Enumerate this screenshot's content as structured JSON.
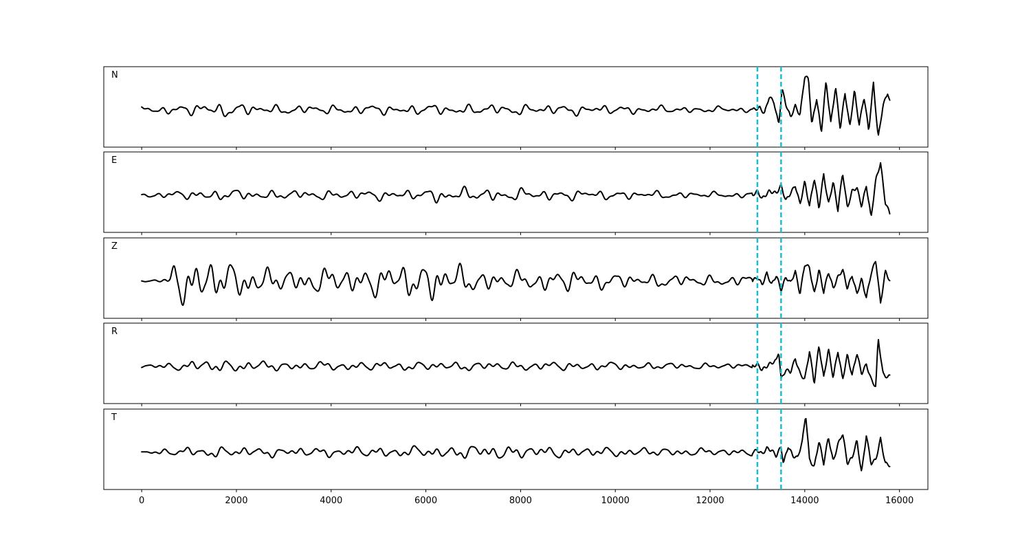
{
  "chart_data": {
    "type": "line",
    "xlim": [
      -800,
      16600
    ],
    "x_ticks": [
      0,
      2000,
      4000,
      6000,
      8000,
      10000,
      12000,
      14000,
      16000
    ],
    "x_tick_labels": [
      "0",
      "2000",
      "4000",
      "6000",
      "8000",
      "10000",
      "12000",
      "14000",
      "16000"
    ],
    "sample_count": 15800,
    "vertical_markers": [
      13000,
      13500
    ],
    "marker_color": "#17becf",
    "trace_color": "#000000",
    "grid": false,
    "panels": [
      {
        "label": "N",
        "ylim": [
          -1,
          1
        ],
        "noise_envelope": [
          [
            0,
            0.08
          ],
          [
            1000,
            0.15
          ],
          [
            1500,
            0.2
          ],
          [
            3000,
            0.12
          ],
          [
            6000,
            0.14
          ],
          [
            9000,
            0.14
          ],
          [
            12000,
            0.08
          ],
          [
            12900,
            0.08
          ]
        ],
        "signal_points": [
          [
            12900,
            0
          ],
          [
            13050,
            0.05
          ],
          [
            13150,
            -0.1
          ],
          [
            13250,
            0.35
          ],
          [
            13350,
            0.2
          ],
          [
            13450,
            -0.4
          ],
          [
            13520,
            0.55
          ],
          [
            13600,
            0.15
          ],
          [
            13700,
            -0.2
          ],
          [
            13800,
            0.1
          ],
          [
            13900,
            -0.15
          ],
          [
            14000,
            0.9
          ],
          [
            14080,
            0.8
          ],
          [
            14150,
            -0.4
          ],
          [
            14250,
            0.3
          ],
          [
            14350,
            -0.6
          ],
          [
            14450,
            0.75
          ],
          [
            14550,
            -0.35
          ],
          [
            14650,
            0.6
          ],
          [
            14750,
            -0.5
          ],
          [
            14850,
            0.45
          ],
          [
            14950,
            -0.45
          ],
          [
            15050,
            0.5
          ],
          [
            15150,
            -0.4
          ],
          [
            15250,
            0.35
          ],
          [
            15350,
            -0.55
          ],
          [
            15450,
            0.7
          ],
          [
            15550,
            -0.75
          ],
          [
            15650,
            0.1
          ],
          [
            15750,
            0.45
          ],
          [
            15800,
            0.2
          ]
        ]
      },
      {
        "label": "E",
        "ylim": [
          -1,
          1
        ],
        "noise_envelope": [
          [
            0,
            0.06
          ],
          [
            1000,
            0.12
          ],
          [
            1500,
            0.15
          ],
          [
            3000,
            0.12
          ],
          [
            6000,
            0.14
          ],
          [
            6200,
            0.2
          ],
          [
            9000,
            0.14
          ],
          [
            12000,
            0.08
          ],
          [
            12900,
            0.08
          ]
        ],
        "signal_points": [
          [
            12900,
            0
          ],
          [
            13000,
            0.1
          ],
          [
            13100,
            -0.1
          ],
          [
            13250,
            0.1
          ],
          [
            13400,
            0.05
          ],
          [
            13500,
            0.25
          ],
          [
            13600,
            -0.15
          ],
          [
            13700,
            0.05
          ],
          [
            13800,
            0.25
          ],
          [
            13900,
            -0.25
          ],
          [
            14000,
            0.35
          ],
          [
            14100,
            -0.3
          ],
          [
            14200,
            0.45
          ],
          [
            14300,
            -0.35
          ],
          [
            14400,
            0.55
          ],
          [
            14500,
            -0.25
          ],
          [
            14600,
            0.35
          ],
          [
            14700,
            -0.4
          ],
          [
            14800,
            0.6
          ],
          [
            14900,
            -0.35
          ],
          [
            15000,
            0.1
          ],
          [
            15100,
            0.2
          ],
          [
            15200,
            -0.3
          ],
          [
            15300,
            0.25
          ],
          [
            15400,
            -0.6
          ],
          [
            15500,
            0.4
          ],
          [
            15600,
            0.85
          ],
          [
            15700,
            -0.2
          ],
          [
            15800,
            -0.5
          ]
        ]
      },
      {
        "label": "Z",
        "ylim": [
          -1,
          1
        ],
        "noise_envelope": [
          [
            0,
            0.02
          ],
          [
            400,
            0.05
          ],
          [
            600,
            0.15
          ],
          [
            700,
            0.6
          ],
          [
            1000,
            0.6
          ],
          [
            1300,
            0.65
          ],
          [
            1600,
            0.55
          ],
          [
            2000,
            0.45
          ],
          [
            3000,
            0.3
          ],
          [
            5000,
            0.4
          ],
          [
            6300,
            0.55
          ],
          [
            7000,
            0.3
          ],
          [
            8000,
            0.25
          ],
          [
            9000,
            0.3
          ],
          [
            10000,
            0.2
          ],
          [
            12000,
            0.15
          ],
          [
            12900,
            0.15
          ]
        ],
        "signal_points": [
          [
            12900,
            0
          ],
          [
            13000,
            0.1
          ],
          [
            13100,
            -0.1
          ],
          [
            13200,
            0.2
          ],
          [
            13300,
            -0.1
          ],
          [
            13400,
            0.15
          ],
          [
            13500,
            -0.25
          ],
          [
            13600,
            0.1
          ],
          [
            13700,
            -0.05
          ],
          [
            13800,
            0.25
          ],
          [
            13900,
            -0.35
          ],
          [
            14000,
            0.45
          ],
          [
            14100,
            0.35
          ],
          [
            14200,
            -0.35
          ],
          [
            14300,
            0.3
          ],
          [
            14400,
            -0.3
          ],
          [
            14500,
            0.25
          ],
          [
            14600,
            -0.2
          ],
          [
            14700,
            0.1
          ],
          [
            14800,
            0.3
          ],
          [
            14900,
            -0.2
          ],
          [
            15000,
            0.15
          ],
          [
            15100,
            -0.35
          ],
          [
            15200,
            0.05
          ],
          [
            15300,
            -0.45
          ],
          [
            15400,
            0.2
          ],
          [
            15500,
            0.55
          ],
          [
            15600,
            -0.6
          ],
          [
            15700,
            0.25
          ],
          [
            15800,
            0
          ]
        ]
      },
      {
        "label": "R",
        "ylim": [
          -1,
          1
        ],
        "noise_envelope": [
          [
            0,
            0.05
          ],
          [
            900,
            0.12
          ],
          [
            1300,
            0.18
          ],
          [
            3000,
            0.12
          ],
          [
            6000,
            0.12
          ],
          [
            9000,
            0.12
          ],
          [
            12000,
            0.08
          ],
          [
            12900,
            0.08
          ]
        ],
        "signal_points": [
          [
            12900,
            0
          ],
          [
            13000,
            0.05
          ],
          [
            13100,
            -0.1
          ],
          [
            13250,
            0.05
          ],
          [
            13400,
            0.15
          ],
          [
            13450,
            0.4
          ],
          [
            13500,
            -0.35
          ],
          [
            13600,
            -0.1
          ],
          [
            13700,
            -0.15
          ],
          [
            13800,
            0.2
          ],
          [
            13900,
            -0.2
          ],
          [
            14000,
            -0.35
          ],
          [
            14100,
            0.4
          ],
          [
            14200,
            -0.45
          ],
          [
            14300,
            0.55
          ],
          [
            14400,
            -0.3
          ],
          [
            14500,
            0.45
          ],
          [
            14600,
            -0.3
          ],
          [
            14700,
            0.4
          ],
          [
            14800,
            -0.35
          ],
          [
            14900,
            0.3
          ],
          [
            15000,
            -0.25
          ],
          [
            15100,
            0.35
          ],
          [
            15200,
            -0.2
          ],
          [
            15300,
            0.05
          ],
          [
            15400,
            -0.35
          ],
          [
            15500,
            -0.55
          ],
          [
            15550,
            0.75
          ],
          [
            15650,
            -0.2
          ],
          [
            15750,
            -0.3
          ],
          [
            15800,
            -0.25
          ]
        ]
      },
      {
        "label": "T",
        "ylim": [
          -1,
          1
        ],
        "noise_envelope": [
          [
            0,
            0.05
          ],
          [
            900,
            0.12
          ],
          [
            1500,
            0.15
          ],
          [
            3000,
            0.12
          ],
          [
            6000,
            0.15
          ],
          [
            7300,
            0.2
          ],
          [
            9000,
            0.14
          ],
          [
            12000,
            0.1
          ],
          [
            12900,
            0.1
          ]
        ],
        "signal_points": [
          [
            12900,
            0
          ],
          [
            13000,
            0.05
          ],
          [
            13100,
            -0.05
          ],
          [
            13200,
            0.1
          ],
          [
            13300,
            0.05
          ],
          [
            13400,
            -0.1
          ],
          [
            13500,
            0.15
          ],
          [
            13550,
            -0.3
          ],
          [
            13650,
            0.15
          ],
          [
            13750,
            -0.1
          ],
          [
            13850,
            -0.15
          ],
          [
            13950,
            0.3
          ],
          [
            14020,
            1.0
          ],
          [
            14100,
            -0.2
          ],
          [
            14200,
            -0.4
          ],
          [
            14300,
            0.3
          ],
          [
            14400,
            -0.3
          ],
          [
            14500,
            0.4
          ],
          [
            14600,
            -0.25
          ],
          [
            14700,
            0.2
          ],
          [
            14800,
            0.5
          ],
          [
            14900,
            -0.3
          ],
          [
            15000,
            -0.15
          ],
          [
            15100,
            0.3
          ],
          [
            15200,
            -0.55
          ],
          [
            15300,
            0.45
          ],
          [
            15400,
            -0.3
          ],
          [
            15500,
            -0.2
          ],
          [
            15600,
            0.35
          ],
          [
            15700,
            -0.3
          ],
          [
            15800,
            -0.35
          ]
        ]
      }
    ]
  }
}
